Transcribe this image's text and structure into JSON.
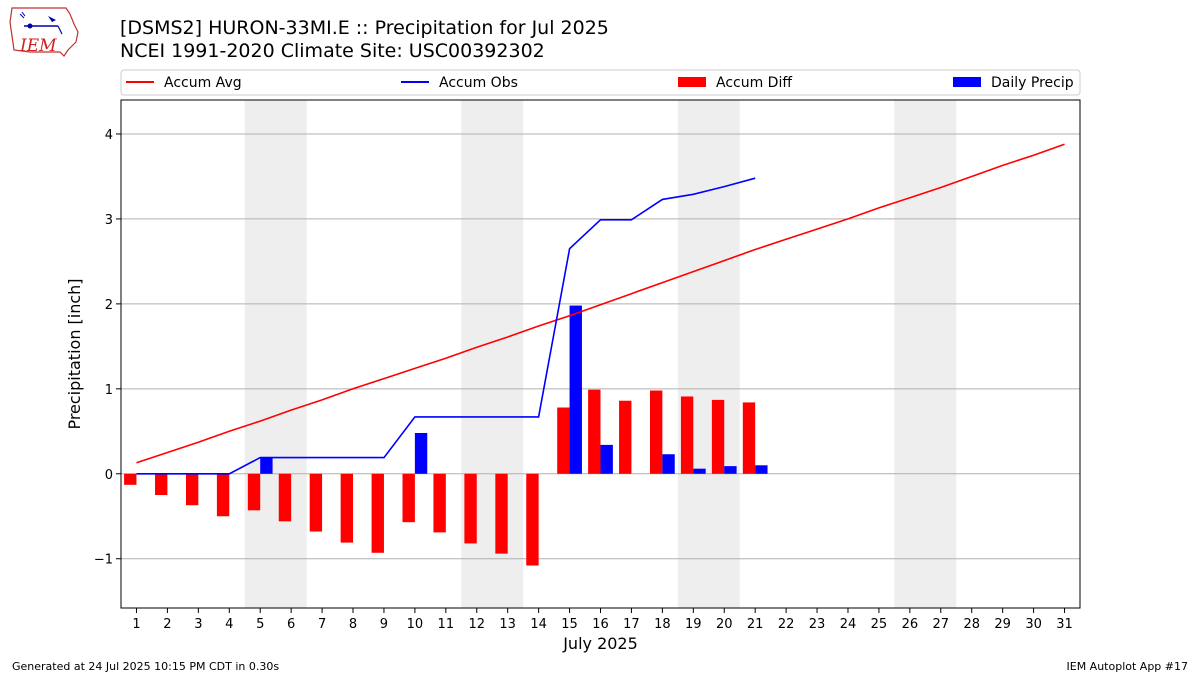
{
  "header": {
    "title_line1": "[DSMS2] HURON-33MI.E :: Precipitation for Jul 2025",
    "title_line2": "NCEI 1991-2020 Climate Site: USC00392302"
  },
  "logo": {
    "text": "IEM",
    "icon": "iowa-state-outline-logo"
  },
  "footer": {
    "generated": "Generated at 24 Jul 2025 10:15 PM CDT in 0.30s",
    "app": "IEM Autoplot App #17"
  },
  "chart_data": {
    "type": "bar",
    "xlabel": "July 2025",
    "ylabel": "Precipitation [inch]",
    "ylim": [
      -1.58,
      4.4
    ],
    "xlim": [
      0.5,
      31.5
    ],
    "yticks": [
      -1,
      0,
      1,
      2,
      3,
      4
    ],
    "ytick_labels": [
      "−1",
      "0",
      "1",
      "2",
      "3",
      "4"
    ],
    "x": [
      1,
      2,
      3,
      4,
      5,
      6,
      7,
      8,
      9,
      10,
      11,
      12,
      13,
      14,
      15,
      16,
      17,
      18,
      19,
      20,
      21,
      22,
      23,
      24,
      25,
      26,
      27,
      28,
      29,
      30,
      31
    ],
    "weekend_shading": [
      [
        5,
        6
      ],
      [
        12,
        13
      ],
      [
        19,
        20
      ],
      [
        26,
        27
      ]
    ],
    "grid": "y",
    "legend_position": "top",
    "series": [
      {
        "name": "Accum Avg",
        "kind": "line",
        "color": "#ff0000",
        "x": [
          1,
          2,
          3,
          4,
          5,
          6,
          7,
          8,
          9,
          10,
          11,
          12,
          13,
          14,
          15,
          16,
          17,
          18,
          19,
          20,
          21,
          22,
          23,
          24,
          25,
          26,
          27,
          28,
          29,
          30,
          31
        ],
        "values": [
          0.13,
          0.25,
          0.37,
          0.5,
          0.62,
          0.75,
          0.87,
          1.0,
          1.12,
          1.24,
          1.36,
          1.49,
          1.61,
          1.74,
          1.86,
          1.99,
          2.12,
          2.25,
          2.38,
          2.51,
          2.64,
          2.76,
          2.88,
          3.0,
          3.13,
          3.25,
          3.37,
          3.5,
          3.63,
          3.75,
          3.88
        ]
      },
      {
        "name": "Accum Obs",
        "kind": "line",
        "color": "#0000ff",
        "x": [
          1,
          2,
          3,
          4,
          5,
          6,
          7,
          8,
          9,
          10,
          11,
          12,
          13,
          14,
          15,
          16,
          17,
          18,
          19,
          20,
          21
        ],
        "values": [
          0,
          0,
          0,
          0,
          0.19,
          0.19,
          0.19,
          0.19,
          0.19,
          0.67,
          0.67,
          0.67,
          0.67,
          0.67,
          2.65,
          2.99,
          2.99,
          3.23,
          3.29,
          3.38,
          3.48
        ]
      },
      {
        "name": "Accum Diff",
        "kind": "bar",
        "color": "#ff0000",
        "x": [
          1,
          2,
          3,
          4,
          5,
          6,
          7,
          8,
          9,
          10,
          11,
          12,
          13,
          14,
          15,
          16,
          17,
          18,
          19,
          20,
          21
        ],
        "values": [
          -0.13,
          -0.25,
          -0.37,
          -0.5,
          -0.43,
          -0.56,
          -0.68,
          -0.81,
          -0.93,
          -0.57,
          -0.69,
          -0.82,
          -0.94,
          -1.08,
          0.78,
          0.99,
          0.86,
          0.98,
          0.91,
          0.87,
          0.84
        ]
      },
      {
        "name": "Daily Precip",
        "kind": "bar",
        "color": "#0000ff",
        "x": [
          1,
          2,
          3,
          4,
          5,
          6,
          7,
          8,
          9,
          10,
          11,
          12,
          13,
          14,
          15,
          16,
          17,
          18,
          19,
          20,
          21
        ],
        "values": [
          0,
          0,
          0,
          0,
          0.19,
          0,
          0,
          0,
          0,
          0.48,
          0,
          0,
          0,
          0,
          1.98,
          0.34,
          0,
          0.23,
          0.06,
          0.09,
          0.1
        ]
      }
    ]
  }
}
